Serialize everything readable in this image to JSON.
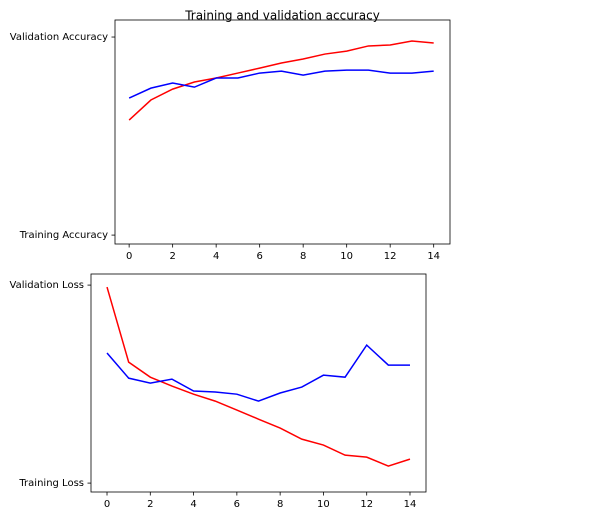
{
  "chart_data": [
    {
      "type": "line",
      "title": "Training and validation accuracy",
      "x": [
        0,
        1,
        2,
        3,
        4,
        5,
        6,
        7,
        8,
        9,
        10,
        11,
        12,
        13,
        14
      ],
      "series": [
        {
          "color": "#ff0000",
          "values": [
            0.581,
            0.682,
            0.737,
            0.773,
            0.793,
            0.818,
            0.843,
            0.869,
            0.889,
            0.914,
            0.929,
            0.955,
            0.96,
            0.98,
            0.97
          ]
        },
        {
          "color": "#0000ff",
          "values": [
            0.692,
            0.742,
            0.768,
            0.747,
            0.793,
            0.793,
            0.818,
            0.828,
            0.808,
            0.828,
            0.833,
            0.833,
            0.818,
            0.818,
            0.828
          ]
        }
      ],
      "xlim": [
        -0.65,
        14.75
      ],
      "xticks": [
        0,
        2,
        4,
        6,
        8,
        10,
        12,
        14
      ],
      "ylim": [
        -0.045,
        1.086
      ],
      "yticks": [
        {
          "value": 0,
          "label": "Training Accuracy"
        },
        {
          "value": 1,
          "label": "Validation Accuracy"
        }
      ]
    },
    {
      "type": "line",
      "x": [
        0,
        1,
        2,
        3,
        4,
        5,
        6,
        7,
        8,
        9,
        10,
        11,
        12,
        13,
        14
      ],
      "series": [
        {
          "color": "#ff0000",
          "values": [
            0.99,
            0.611,
            0.535,
            0.49,
            0.449,
            0.414,
            0.369,
            0.323,
            0.278,
            0.222,
            0.192,
            0.141,
            0.131,
            0.086,
            0.121
          ]
        },
        {
          "color": "#0000ff",
          "values": [
            0.657,
            0.53,
            0.505,
            0.525,
            0.465,
            0.46,
            0.449,
            0.414,
            0.455,
            0.485,
            0.545,
            0.535,
            0.697,
            0.596,
            0.596
          ]
        }
      ],
      "xlim": [
        -0.74,
        14.74
      ],
      "xticks": [
        0,
        2,
        4,
        6,
        8,
        10,
        12,
        14
      ],
      "ylim": [
        -0.045,
        1.056
      ],
      "yticks": [
        {
          "value": 0,
          "label": "Training Loss"
        },
        {
          "value": 1,
          "label": "Validation Loss"
        }
      ]
    }
  ]
}
